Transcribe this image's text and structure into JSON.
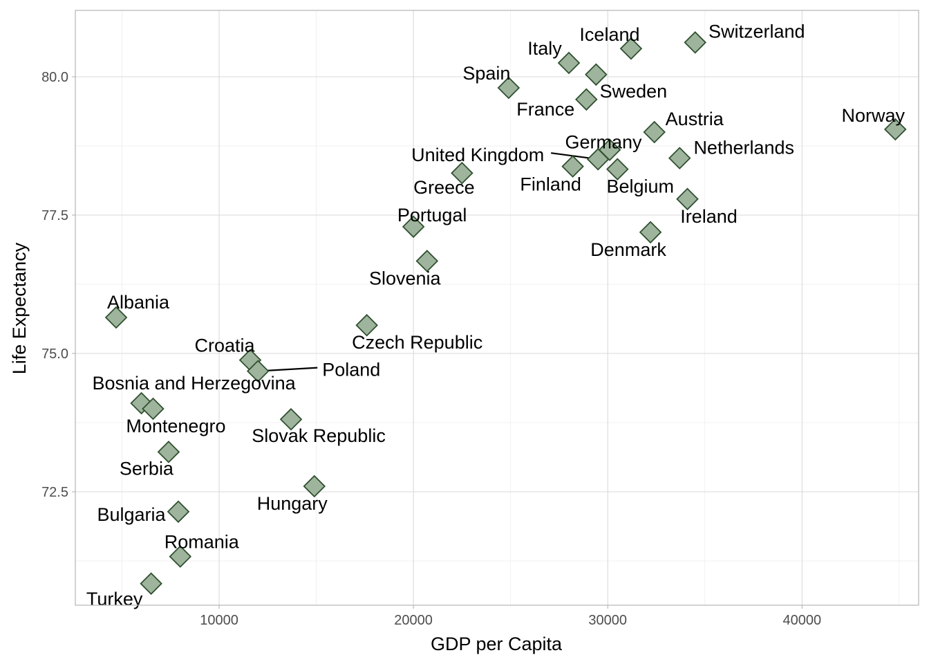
{
  "chart_data": {
    "type": "scatter",
    "xlabel": "GDP per Capita",
    "ylabel": "Life Expectancy",
    "xlim": [
      2600,
      46000
    ],
    "ylim": [
      70.45,
      81.2
    ],
    "x_ticks": [
      10000,
      20000,
      30000,
      40000
    ],
    "y_ticks": [
      72.5,
      75.0,
      77.5,
      80.0
    ],
    "y_tick_labels": [
      "72.5",
      "75.0",
      "77.5",
      "80.0"
    ],
    "grid": true,
    "marker": "diamond",
    "colors": {
      "point_fill": "#9fb49d",
      "point_stroke": "#2f4f2f",
      "grid": "#d9d9d9",
      "border": "#b3b3b3"
    },
    "points": [
      {
        "label": "Albania",
        "x": 4700,
        "y": 75.65
      },
      {
        "label": "Austria",
        "x": 32400,
        "y": 79.0
      },
      {
        "label": "Belgium",
        "x": 30500,
        "y": 78.33
      },
      {
        "label": "Bosnia and Herzegovina",
        "x": 6000,
        "y": 74.1
      },
      {
        "label": "Bulgaria",
        "x": 7900,
        "y": 72.14
      },
      {
        "label": "Croatia",
        "x": 11600,
        "y": 74.88
      },
      {
        "label": "Czech Republic",
        "x": 17600,
        "y": 75.51
      },
      {
        "label": "Denmark",
        "x": 32200,
        "y": 77.19
      },
      {
        "label": "Finland",
        "x": 28200,
        "y": 78.38
      },
      {
        "label": "France",
        "x": 28900,
        "y": 79.59
      },
      {
        "label": "Germany",
        "x": 30100,
        "y": 78.68
      },
      {
        "label": "Greece",
        "x": 22500,
        "y": 78.26
      },
      {
        "label": "Hungary",
        "x": 14900,
        "y": 72.6
      },
      {
        "label": "Iceland",
        "x": 31200,
        "y": 80.51
      },
      {
        "label": "Ireland",
        "x": 34100,
        "y": 77.79
      },
      {
        "label": "Italy",
        "x": 28000,
        "y": 80.25
      },
      {
        "label": "Montenegro",
        "x": 6600,
        "y": 74.0
      },
      {
        "label": "Netherlands",
        "x": 33700,
        "y": 78.53
      },
      {
        "label": "Norway",
        "x": 44800,
        "y": 79.05
      },
      {
        "label": "Poland",
        "x": 12000,
        "y": 74.68
      },
      {
        "label": "Portugal",
        "x": 20000,
        "y": 77.29
      },
      {
        "label": "Romania",
        "x": 8000,
        "y": 71.33
      },
      {
        "label": "Serbia",
        "x": 7400,
        "y": 73.22
      },
      {
        "label": "Slovak Republic",
        "x": 13700,
        "y": 73.81
      },
      {
        "label": "Slovenia",
        "x": 20700,
        "y": 76.67
      },
      {
        "label": "Spain",
        "x": 24900,
        "y": 79.8
      },
      {
        "label": "Sweden",
        "x": 29400,
        "y": 80.04
      },
      {
        "label": "Switzerland",
        "x": 34500,
        "y": 80.62
      },
      {
        "label": "Turkey",
        "x": 6500,
        "y": 70.84
      },
      {
        "label": "United Kingdom",
        "x": 29500,
        "y": 78.51
      }
    ]
  }
}
